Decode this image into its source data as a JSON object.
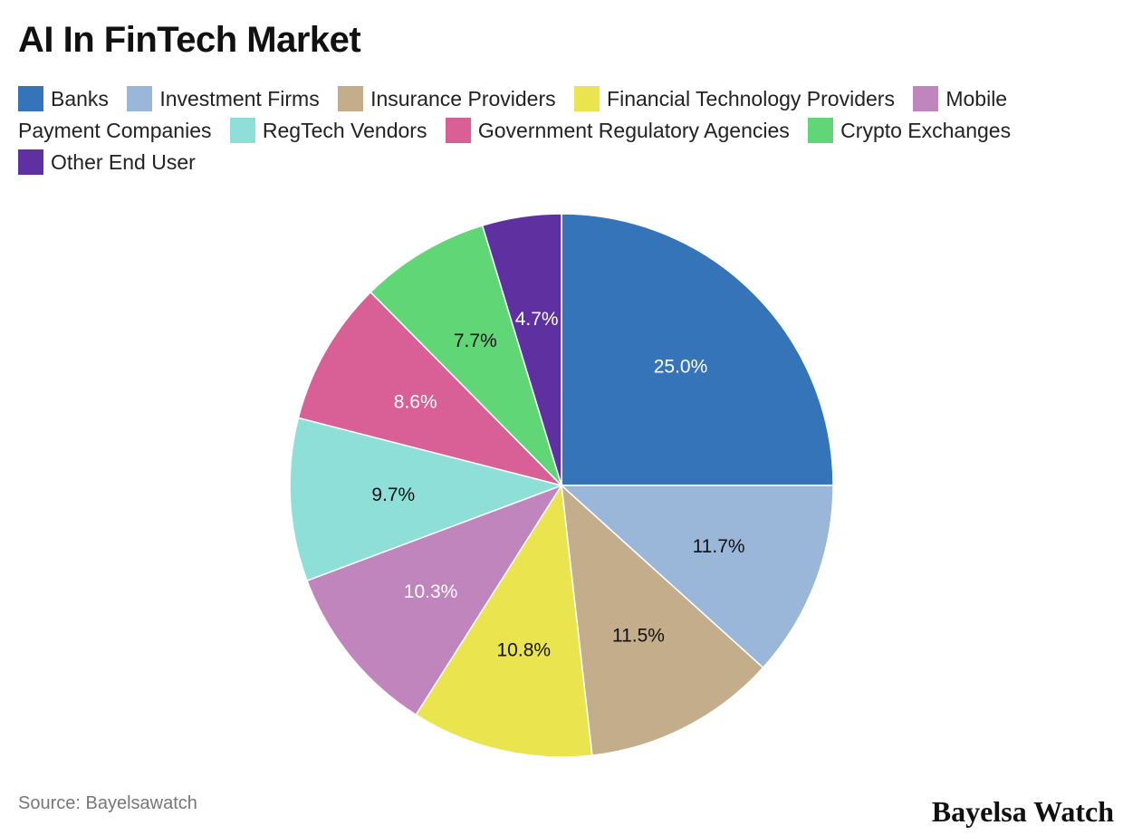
{
  "chart_data": {
    "type": "pie",
    "title": "AI In FinTech Market",
    "start_angle": "top, clockwise",
    "legend_placement": "top",
    "slices": [
      {
        "label": "Banks",
        "value": 25.0,
        "display": "25.0%",
        "color": "#3674ba",
        "text_color": "#ffffff"
      },
      {
        "label": "Investment Firms",
        "value": 11.7,
        "display": "11.7%",
        "color": "#9ab7da",
        "text_color": "#111111"
      },
      {
        "label": "Insurance Providers",
        "value": 11.5,
        "display": "11.5%",
        "color": "#c3ad8b",
        "text_color": "#111111"
      },
      {
        "label": "Financial Technology Providers",
        "value": 10.8,
        "display": "10.8%",
        "color": "#eae54f",
        "text_color": "#111111"
      },
      {
        "label": "Mobile Payment Companies",
        "value": 10.3,
        "display": "10.3%",
        "color": "#c185bd",
        "text_color": "#ffffff"
      },
      {
        "label": "RegTech Vendors",
        "value": 9.7,
        "display": "9.7%",
        "color": "#8edfd8",
        "text_color": "#111111"
      },
      {
        "label": "Government Regulatory Agencies",
        "value": 8.6,
        "display": "8.6%",
        "color": "#d86096",
        "text_color": "#ffffff"
      },
      {
        "label": "Crypto Exchanges",
        "value": 7.7,
        "display": "7.7%",
        "color": "#60d677",
        "text_color": "#111111"
      },
      {
        "label": "Other End User",
        "value": 4.7,
        "display": "4.7%",
        "color": "#5f30a0",
        "text_color": "#ffffff"
      }
    ]
  },
  "source": "Source: Bayelsawatch",
  "brand": "Bayelsa Watch"
}
